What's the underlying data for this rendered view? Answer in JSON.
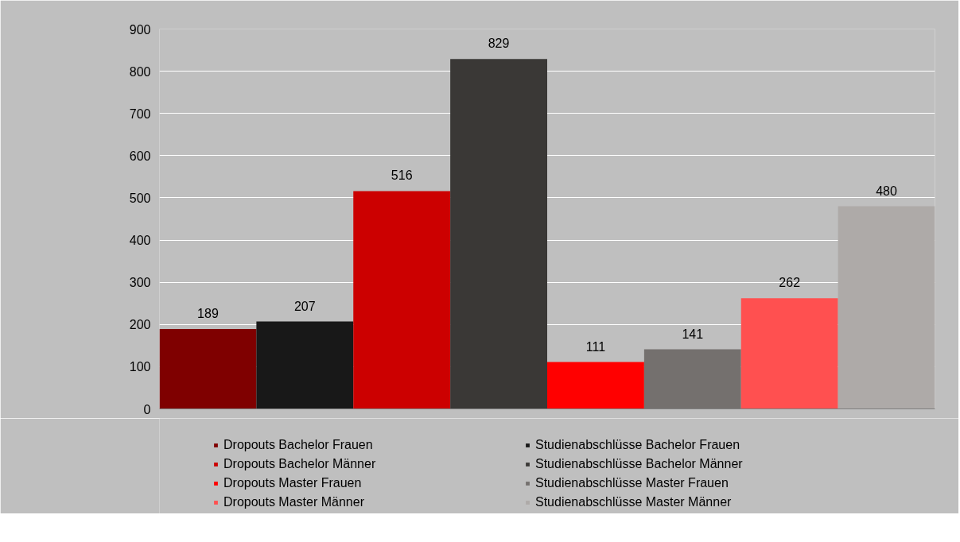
{
  "chart_data": {
    "type": "bar",
    "categories": [
      null
    ],
    "series": [
      {
        "name": "Dropouts Bachelor Frauen",
        "color": "#7f0000",
        "values": [
          189
        ]
      },
      {
        "name": "Studienabschlüsse Bachelor Frauen",
        "color": "#181818",
        "values": [
          207
        ]
      },
      {
        "name": "Dropouts Bachelor Männer",
        "color": "#cc0000",
        "values": [
          516
        ]
      },
      {
        "name": "Studienabschlüsse Bachelor Männer",
        "color": "#3a3836",
        "values": [
          829
        ]
      },
      {
        "name": "Dropouts Master Frauen",
        "color": "#ff0000",
        "values": [
          111
        ]
      },
      {
        "name": "Studienabschlüsse Master Frauen",
        "color": "#74706e",
        "values": [
          141
        ]
      },
      {
        "name": "Dropouts Master Männer",
        "color": "#ff5050",
        "values": [
          262
        ]
      },
      {
        "name": "Studienabschlüsse Master Männer",
        "color": "#aeaaa8",
        "values": [
          480
        ]
      }
    ],
    "ylim": [
      0,
      900
    ],
    "yticks": [
      0,
      100,
      200,
      300,
      400,
      500,
      600,
      700,
      800,
      900
    ],
    "grid": "y",
    "legend": "bottom",
    "data_labels": true
  }
}
